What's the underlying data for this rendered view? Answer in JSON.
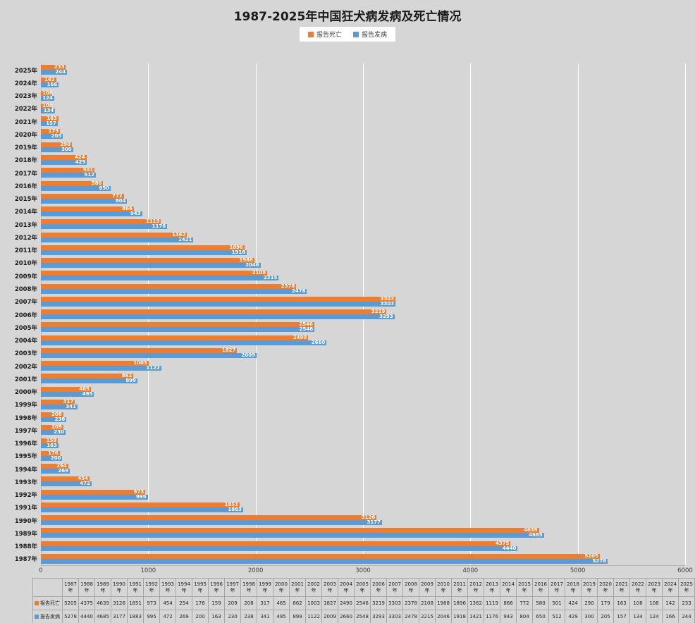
{
  "chart": {
    "title": "1987-2025年中国狂犬病发病及死亡情况",
    "background_color": "#d6d6d6",
    "legend": [
      {
        "label": "报告死亡",
        "color": "#ED7D31"
      },
      {
        "label": "报告发病",
        "color": "#5B9BD5"
      }
    ]
  },
  "chart_data": {
    "type": "bar",
    "orientation": "horizontal",
    "title": "1987-2025年中国狂犬病发病及死亡情况",
    "grid": true,
    "legend_position": "top",
    "category_order_on_axis": "2025 at top, 1987 at bottom",
    "xlim": [
      0,
      6000
    ],
    "x_ticks": [
      0,
      1000,
      2000,
      3000,
      4000,
      5000,
      6000
    ],
    "categories": [
      "1987年",
      "1988年",
      "1989年",
      "1990年",
      "1991年",
      "1992年",
      "1993年",
      "1994年",
      "1995年",
      "1996年",
      "1997年",
      "1998年",
      "1999年",
      "2000年",
      "2001年",
      "2002年",
      "2003年",
      "2004年",
      "2005年",
      "2006年",
      "2007年",
      "2008年",
      "2009年",
      "2010年",
      "2011年",
      "2012年",
      "2013年",
      "2014年",
      "2015年",
      "2016年",
      "2017年",
      "2018年",
      "2019年",
      "2020年",
      "2021年",
      "2022年",
      "2023年",
      "2024年",
      "2025年"
    ],
    "series": [
      {
        "name": "报告死亡",
        "color": "#ED7D31",
        "values": [
          5205,
          4375,
          4639,
          3126,
          1851,
          973,
          454,
          254,
          176,
          159,
          209,
          208,
          317,
          465,
          862,
          1003,
          1827,
          2490,
          2546,
          3219,
          3303,
          2378,
          2108,
          1988,
          1896,
          1362,
          1119,
          866,
          772,
          580,
          501,
          424,
          290,
          179,
          163,
          108,
          108,
          142,
          233
        ]
      },
      {
        "name": "报告发病",
        "color": "#5B9BD5",
        "values": [
          5278,
          4440,
          4685,
          3177,
          1883,
          995,
          472,
          269,
          200,
          163,
          230,
          238,
          341,
          495,
          899,
          1122,
          2009,
          2660,
          2548,
          3293,
          3303,
          2478,
          2215,
          2046,
          1918,
          1421,
          1176,
          943,
          804,
          650,
          512,
          429,
          300,
          205,
          157,
          134,
          124,
          166,
          244
        ]
      }
    ],
    "data_table_shown": true
  }
}
